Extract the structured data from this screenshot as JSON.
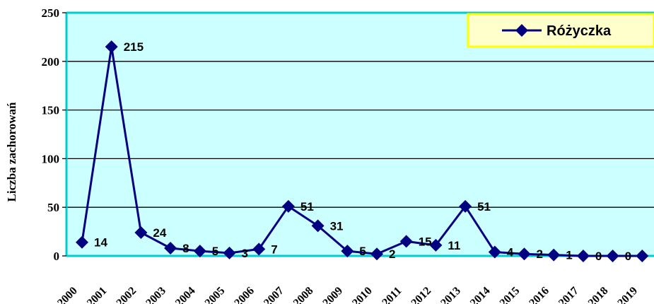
{
  "chart_data": {
    "type": "line",
    "title": "",
    "xlabel": "",
    "ylabel": "Liczba zachorowań",
    "ylim": [
      0,
      250
    ],
    "yticks": [
      "0",
      "50",
      "100",
      "150",
      "200",
      "250"
    ],
    "categories": [
      "2000",
      "2001",
      "2002",
      "2003",
      "2004",
      "2005",
      "2006",
      "2007",
      "2008",
      "2009",
      "2010",
      "2011",
      "2012",
      "2013",
      "2014",
      "2015",
      "2016",
      "2017",
      "2018",
      "2019"
    ],
    "series": [
      {
        "name": "Różyczka",
        "values": [
          14,
          215,
          24,
          8,
          5,
          3,
          7,
          51,
          31,
          5,
          2,
          15,
          11,
          51,
          4,
          2,
          1,
          0,
          0,
          0
        ],
        "labels": [
          "14",
          "215",
          "24",
          "8",
          "5",
          "3",
          "7",
          "51",
          "31",
          "5",
          "2",
          "15",
          "11",
          "51",
          "4",
          "2",
          "1",
          "0",
          "0",
          "0"
        ]
      }
    ],
    "grid": true,
    "legend_position": "top-right",
    "colors": {
      "plot_background": "#ccffff",
      "series_line": "#000080",
      "axis": "#00cccc",
      "legend_background": "#ffffcc",
      "legend_border": "#ffff00"
    }
  }
}
